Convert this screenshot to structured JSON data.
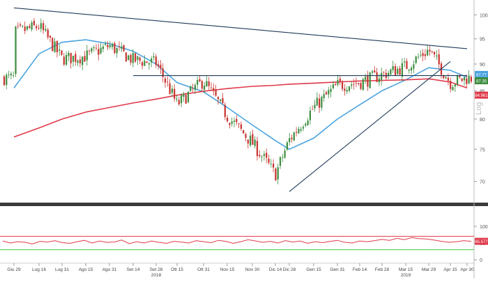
{
  "chart_data": [
    {
      "type": "candlestick",
      "title": "",
      "y_scale": "log",
      "y_axis_label": "Log",
      "ylim": [
        67,
        102
      ],
      "y_ticks": [
        70,
        75,
        80,
        85,
        90,
        95,
        100
      ],
      "x_ticks": [
        "Giu 29",
        "Lug 16",
        "Lug 31",
        "Ago 15",
        "Ago 31",
        "Set 14",
        "Set 28",
        "Ott 15",
        "Ott 31",
        "Nov 15",
        "Nov 30",
        "Dic 14",
        "Dic 28",
        "Gen 15",
        "Gen 31",
        "Feb 14",
        "Feb 28",
        "Mar 15",
        "Mar 29",
        "Apr 15",
        "Apr 30"
      ],
      "year_labels": [
        {
          "label": "2018",
          "at": "Set 28"
        },
        {
          "label": "2019",
          "at": "Mar 15"
        }
      ],
      "price_path": [
        {
          "x": "Giu 29",
          "close": 96.2
        },
        {
          "x": "Lug 16",
          "close": 97.6
        },
        {
          "x": "Lug 31",
          "close": 91.0
        },
        {
          "x": "Ago 15",
          "close": 91.5
        },
        {
          "x": "Ago 31",
          "close": 93.6
        },
        {
          "x": "Set 14",
          "close": 90.8
        },
        {
          "x": "Set 28",
          "close": 90.2
        },
        {
          "x": "Ott 15",
          "close": 82.5
        },
        {
          "x": "Ott 31",
          "close": 86.8
        },
        {
          "x": "Nov 15",
          "close": 80.5
        },
        {
          "x": "Nov 30",
          "close": 76.0
        },
        {
          "x": "Dic 14",
          "close": 71.0
        },
        {
          "x": "Dic 28",
          "close": 76.5
        },
        {
          "x": "Gen 15",
          "close": 82.0
        },
        {
          "x": "Gen 31",
          "close": 86.0
        },
        {
          "x": "Feb 14",
          "close": 86.5
        },
        {
          "x": "Feb 28",
          "close": 88.0
        },
        {
          "x": "Mar 15",
          "close": 89.5
        },
        {
          "x": "Mar 29",
          "close": 92.8
        },
        {
          "x": "Apr 15",
          "close": 86.5
        },
        {
          "x": "Apr 30",
          "close": 87.35
        }
      ],
      "series": [
        {
          "name": "MA 50",
          "color": "#4aa3df",
          "values": [
            85.5,
            92.0,
            94.3,
            94.8,
            94.0,
            92.5,
            90.0,
            86.5,
            84.8,
            82.0,
            79.0,
            76.4,
            75.0,
            76.8,
            80.0,
            82.5,
            85.0,
            87.0,
            89.3,
            88.8,
            87.5
          ]
        },
        {
          "name": "MA 200",
          "color": "#e0394a",
          "values": [
            77.0,
            78.5,
            80.0,
            81.2,
            82.0,
            82.8,
            83.5,
            84.2,
            84.9,
            85.4,
            85.8,
            86.0,
            86.2,
            86.4,
            86.6,
            86.8,
            86.9,
            87.0,
            87.2,
            86.6,
            85.5
          ]
        }
      ],
      "trendlines": [
        {
          "from": {
            "x": "Giu 29",
            "y": 101.5
          },
          "to": {
            "x": "Apr 30",
            "y": 93.0
          }
        },
        {
          "from": {
            "x": "Dic 28",
            "y": 68.5
          },
          "to": {
            "x": "Apr 15",
            "y": 90.5
          }
        },
        {
          "from": {
            "x": "Set 14",
            "y": 87.8
          },
          "to": {
            "x": "Apr 30",
            "y": 87.8
          }
        }
      ],
      "value_badges": [
        {
          "label": "87.77",
          "color": "#4aa3df"
        },
        {
          "label": "87.35",
          "color": "#3b8d3e"
        },
        {
          "label": "84.961",
          "color": "#e0394a"
        }
      ]
    },
    {
      "type": "line",
      "title": "",
      "ylim": [
        0,
        100
      ],
      "y_ticks": [
        0,
        50,
        100
      ],
      "bands": [
        {
          "y": 70,
          "color": "#e0394a"
        },
        {
          "y": 30,
          "color": "#3cc84a"
        }
      ],
      "series": [
        {
          "name": "",
          "color": "#e0394a",
          "values": [
            56,
            50,
            54,
            52,
            47,
            55,
            53,
            57,
            51,
            49,
            54,
            58,
            50,
            56,
            52,
            53,
            59,
            48,
            54,
            50,
            56,
            52,
            49,
            55,
            53,
            50,
            57,
            54,
            51,
            58,
            55,
            49,
            54,
            60,
            56,
            52,
            55,
            50,
            57,
            53,
            56,
            49,
            54,
            51,
            55,
            58,
            52,
            50,
            56,
            54,
            57,
            61,
            58,
            64,
            60,
            66,
            63,
            62,
            59,
            55,
            52,
            54,
            57,
            55
          ]
        }
      ],
      "value_badges": [
        {
          "label": "65.577",
          "color": "#e0394a"
        }
      ]
    }
  ]
}
